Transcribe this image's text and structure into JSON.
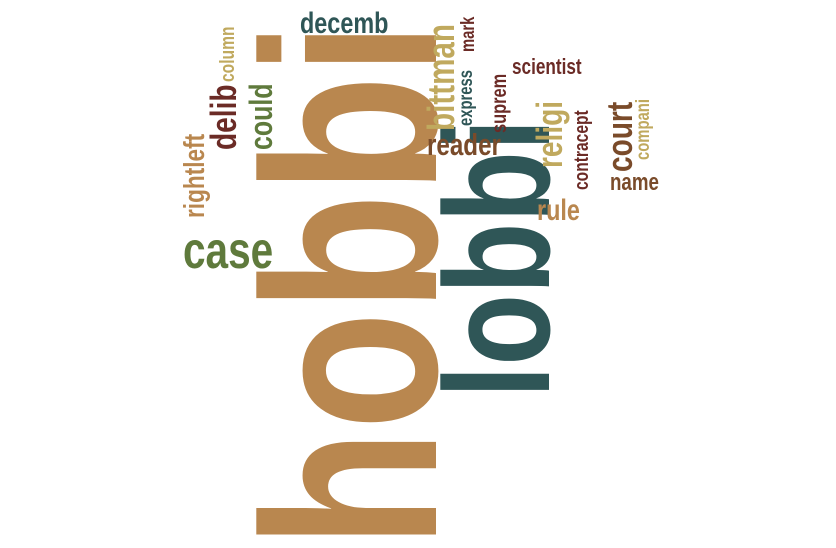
{
  "palette": {
    "tan": "#b9874f",
    "teal": "#2f5657",
    "olive": "#5f7a3c",
    "maroon": "#6b2b26",
    "khaki": "#c0a95e",
    "brown": "#7a4b2a"
  },
  "words": [
    {
      "id": "hobbi",
      "text": "hobbi",
      "color": "tan"
    },
    {
      "id": "lobbi",
      "text": "lobbi",
      "color": "teal"
    },
    {
      "id": "case",
      "text": "case",
      "color": "olive"
    },
    {
      "id": "decemb",
      "text": "decemb",
      "color": "teal"
    },
    {
      "id": "bittman",
      "text": "bittman",
      "color": "khaki"
    },
    {
      "id": "reader",
      "text": "reader",
      "color": "brown"
    },
    {
      "id": "religi",
      "text": "religi",
      "color": "khaki"
    },
    {
      "id": "court",
      "text": "court",
      "color": "brown"
    },
    {
      "id": "delib",
      "text": "delib",
      "color": "maroon"
    },
    {
      "id": "could",
      "text": "could",
      "color": "olive"
    },
    {
      "id": "rightleft",
      "text": "rightleft",
      "color": "tan"
    },
    {
      "id": "column",
      "text": "column",
      "color": "khaki"
    },
    {
      "id": "mark",
      "text": "mark",
      "color": "maroon"
    },
    {
      "id": "express",
      "text": "express",
      "color": "teal"
    },
    {
      "id": "suprem",
      "text": "suprem",
      "color": "maroon"
    },
    {
      "id": "scientist",
      "text": "scientist",
      "color": "maroon"
    },
    {
      "id": "contracept",
      "text": "contracept",
      "color": "maroon"
    },
    {
      "id": "compani",
      "text": "compani",
      "color": "khaki"
    },
    {
      "id": "name",
      "text": "name",
      "color": "brown"
    },
    {
      "id": "rule",
      "text": "rule",
      "color": "tan"
    }
  ]
}
